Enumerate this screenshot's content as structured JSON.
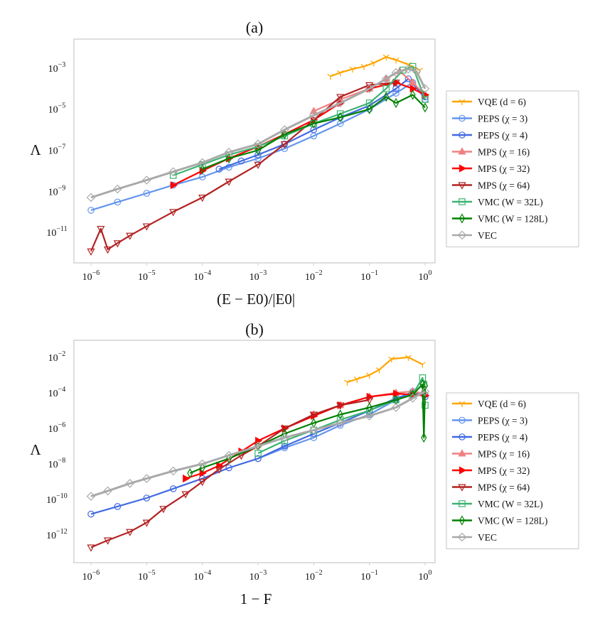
{
  "legend_entries": [
    {
      "key": "vqe",
      "label": "VQE (d = 6)",
      "color": "#FFA500",
      "marker": "tri_down"
    },
    {
      "key": "peps3",
      "label": "PEPS (χ = 3)",
      "color": "#6495ED",
      "marker": "circle"
    },
    {
      "key": "peps4",
      "label": "PEPS (χ = 4)",
      "color": "#4169E1",
      "marker": "circle"
    },
    {
      "key": "mps16",
      "label": "MPS (χ = 16)",
      "color": "#F08080",
      "marker": "triangle_up"
    },
    {
      "key": "mps32",
      "label": "MPS (χ = 32)",
      "color": "#FF0000",
      "marker": "triangle_right"
    },
    {
      "key": "mps64",
      "label": "MPS (χ = 64)",
      "color": "#B22222",
      "marker": "triangle_down"
    },
    {
      "key": "vmc32",
      "label": "VMC (W = 32L)",
      "color": "#3CB371",
      "marker": "square"
    },
    {
      "key": "vmc128",
      "label": "VMC (W = 128L)",
      "color": "#008000",
      "marker": "diamond_thin"
    },
    {
      "key": "vec",
      "label": "VEC",
      "color": "#A9A9A9",
      "marker": "diamond"
    }
  ],
  "chart_data": [
    {
      "type": "line",
      "title": "(a)",
      "xlabel": "(E − E0)/|E0|",
      "ylabel": "Λ",
      "xscale": "log",
      "yscale": "log",
      "xlim": [
        1e-06,
        1
      ],
      "ylim": [
        1e-12,
        0.01
      ],
      "x_ticks": [
        "10^-6",
        "10^-5",
        "10^-4",
        "10^-3",
        "10^-2",
        "10^-1",
        "10^0"
      ],
      "y_ticks": [
        "10^-11",
        "10^-9",
        "10^-7",
        "10^-5",
        "10^-3"
      ],
      "grid": false,
      "legend_position": "right",
      "series": [
        {
          "name": "VQE (d = 6)",
          "key": "vqe",
          "x": [
            0.02,
            0.03,
            0.05,
            0.08,
            0.12,
            0.2,
            0.3,
            0.5,
            0.8
          ],
          "y": [
            0.0004,
            0.0006,
            0.0009,
            0.0012,
            0.0018,
            0.0035,
            0.0025,
            0.0015,
            0.0008
          ]
        },
        {
          "name": "PEPS (χ = 3)",
          "key": "peps3",
          "x": [
            1e-06,
            3e-06,
            1e-05,
            3e-05,
            0.0001,
            0.0003,
            0.001,
            0.003,
            0.01,
            0.03,
            0.1,
            0.3,
            0.6,
            1.0
          ],
          "y": [
            1.2e-10,
            3e-10,
            8e-10,
            2e-09,
            5e-09,
            1.5e-08,
            4e-08,
            1.2e-07,
            5e-07,
            2e-06,
            1e-05,
            6e-05,
            0.0002,
            3e-05
          ]
        },
        {
          "name": "PEPS (χ = 4)",
          "key": "peps4",
          "x": [
            0.0002,
            0.0005,
            0.001,
            0.003,
            0.01,
            0.03,
            0.1,
            0.3,
            0.5,
            1.0
          ],
          "y": [
            1.2e-08,
            3e-08,
            6e-08,
            2e-07,
            1e-06,
            4e-06,
            1.5e-05,
            0.0001,
            0.0003,
            4e-05
          ]
        },
        {
          "name": "MPS (χ = 16)",
          "key": "mps16",
          "x": [
            0.01,
            0.03,
            0.1,
            0.2,
            0.35,
            0.6,
            1.0
          ],
          "y": [
            8e-06,
            3e-05,
            0.0001,
            0.0003,
            0.0007,
            0.0002,
            5e-05
          ]
        },
        {
          "name": "MPS (χ = 32)",
          "key": "mps32",
          "x": [
            3e-05,
            0.0001,
            0.0003,
            0.001,
            0.003,
            0.01,
            0.03,
            0.1,
            0.3,
            0.6,
            1.0
          ],
          "y": [
            2e-09,
            1e-08,
            4e-08,
            1.5e-07,
            6e-07,
            3e-06,
            2e-05,
            0.0001,
            0.0002,
            0.0001,
            5e-05
          ]
        },
        {
          "name": "MPS (χ = 64)",
          "key": "mps64",
          "x": [
            1e-06,
            1.5e-06,
            2e-06,
            3e-06,
            5e-06,
            1e-05,
            3e-05,
            0.0001,
            0.0003,
            0.001,
            0.003,
            0.01,
            0.03,
            0.1,
            0.3
          ],
          "y": [
            1.2e-12,
            1.5e-11,
            1.5e-12,
            3e-12,
            7e-12,
            2e-11,
            1e-10,
            5e-10,
            3e-09,
            2e-08,
            2e-07,
            3e-06,
            4e-05,
            0.00015,
            0.0002
          ]
        },
        {
          "name": "VMC (W = 32L)",
          "key": "vmc32",
          "x": [
            3e-05,
            0.0001,
            0.0003,
            0.001,
            0.003,
            0.01,
            0.03,
            0.1,
            0.2,
            0.4,
            0.6,
            1.0
          ],
          "y": [
            6e-09,
            2e-08,
            6e-08,
            1.5e-07,
            5e-07,
            2e-06,
            6e-06,
            2e-05,
            0.0001,
            0.0008,
            0.0012,
            3e-05
          ]
        },
        {
          "name": "VMC (W = 128L)",
          "key": "vmc128",
          "x": [
            0.0001,
            0.0003,
            0.001,
            0.003,
            0.01,
            0.03,
            0.1,
            0.2,
            0.3,
            0.6,
            1.0
          ],
          "y": [
            1.2e-08,
            4e-08,
            1e-07,
            6e-07,
            2e-06,
            4e-06,
            1e-05,
            4e-05,
            2e-05,
            5e-05,
            1.2e-05
          ]
        },
        {
          "name": "VEC",
          "key": "vec",
          "x": [
            1e-06,
            3e-06,
            1e-05,
            3e-05,
            0.0001,
            0.0003,
            0.001,
            0.003,
            0.01,
            0.03,
            0.1,
            0.2,
            0.3,
            0.5,
            0.7,
            1.0
          ],
          "y": [
            5e-10,
            1.3e-09,
            3.5e-09,
            9e-09,
            2.5e-08,
            8e-08,
            2e-07,
            1e-06,
            5e-06,
            2e-05,
            0.0001,
            0.0003,
            0.0006,
            0.0009,
            0.0007,
            0.0001
          ]
        }
      ]
    },
    {
      "type": "line",
      "title": "(b)",
      "xlabel": "1 − F",
      "ylabel": "Λ",
      "xscale": "log",
      "yscale": "log",
      "xlim": [
        1e-06,
        1
      ],
      "ylim": [
        1e-13,
        0.03
      ],
      "x_ticks": [
        "10^-6",
        "10^-5",
        "10^-4",
        "10^-3",
        "10^-2",
        "10^-1",
        "10^0"
      ],
      "y_ticks": [
        "10^-12",
        "10^-10",
        "10^-8",
        "10^-6",
        "10^-4",
        "10^-2"
      ],
      "grid": false,
      "legend_position": "right",
      "series": [
        {
          "name": "VQE (d = 6)",
          "key": "vqe",
          "x": [
            0.04,
            0.06,
            0.1,
            0.15,
            0.25,
            0.5,
            0.9
          ],
          "y": [
            0.0004,
            0.0006,
            0.001,
            0.002,
            0.008,
            0.01,
            0.004
          ]
        },
        {
          "name": "PEPS (χ = 3)",
          "key": "peps3",
          "x": [
            0.001,
            0.003,
            0.01,
            0.03,
            0.1,
            0.3,
            0.6,
            1.0
          ],
          "y": [
            2e-08,
            8e-08,
            3e-07,
            1.5e-06,
            6e-06,
            4e-05,
            0.00012,
            8e-05
          ]
        },
        {
          "name": "PEPS (χ = 4)",
          "key": "peps4",
          "x": [
            1e-06,
            3e-06,
            1e-05,
            3e-05,
            0.0001,
            0.0003,
            0.001,
            0.003,
            0.01,
            0.03,
            0.1,
            0.3,
            0.6,
            1.0
          ],
          "y": [
            1.5e-11,
            4e-11,
            1.2e-10,
            4e-10,
            1.5e-09,
            6e-09,
            2e-08,
            1e-07,
            5e-07,
            2e-06,
            1e-05,
            5e-05,
            0.0001,
            6e-05
          ]
        },
        {
          "name": "MPS (χ = 16)",
          "key": "mps16",
          "x": [
            0.01,
            0.03,
            0.1,
            0.3,
            0.6,
            1.0
          ],
          "y": [
            6e-06,
            2e-05,
            6e-05,
            0.0001,
            0.00012,
            9e-05
          ]
        },
        {
          "name": "MPS (χ = 32)",
          "key": "mps32",
          "x": [
            5e-05,
            0.0001,
            0.0002,
            0.0005,
            0.001,
            0.003,
            0.01,
            0.03,
            0.1,
            0.3,
            0.6,
            1.0
          ],
          "y": [
            1.5e-09,
            3e-09,
            8e-09,
            5e-08,
            2e-07,
            1e-06,
            5e-06,
            2e-05,
            6e-05,
            9e-05,
            8e-05,
            7e-05
          ]
        },
        {
          "name": "MPS (χ = 64)",
          "key": "mps64",
          "x": [
            1e-06,
            2e-06,
            5e-06,
            1e-05,
            2e-05,
            5e-05,
            0.0001,
            0.0002,
            0.0005,
            0.001,
            0.003,
            0.01,
            0.03,
            0.1
          ],
          "y": [
            2e-13,
            5e-13,
            1.5e-12,
            5e-12,
            3e-11,
            2e-10,
            1e-09,
            5e-09,
            3e-08,
            1e-07,
            1e-06,
            6e-06,
            2e-05,
            4e-05
          ]
        },
        {
          "name": "VMC (W = 32L)",
          "key": "vmc32",
          "x": [
            0.001,
            0.003,
            0.01,
            0.03,
            0.1,
            0.3,
            0.6,
            0.9,
            0.95,
            1.0
          ],
          "y": [
            4e-08,
            2e-07,
            8e-07,
            3e-06,
            1e-05,
            4e-05,
            8e-05,
            0.0007,
            0.0003,
            2e-05
          ]
        },
        {
          "name": "VMC (W = 128L)",
          "key": "vmc128",
          "x": [
            6e-05,
            0.0001,
            0.0003,
            0.001,
            0.003,
            0.01,
            0.03,
            0.1,
            0.3,
            0.6,
            0.9,
            0.95,
            1.0
          ],
          "y": [
            3e-09,
            6e-09,
            2e-08,
            1e-07,
            5e-07,
            2e-06,
            6e-06,
            1.5e-05,
            4e-05,
            8e-05,
            0.0003,
            3e-07,
            0.00025
          ]
        },
        {
          "name": "VEC",
          "key": "vec",
          "x": [
            1e-06,
            2e-06,
            5e-06,
            1e-05,
            3e-05,
            0.0001,
            0.0003,
            0.001,
            0.003,
            0.01,
            0.03,
            0.1,
            0.3,
            0.6,
            1.0
          ],
          "y": [
            1.5e-10,
            3e-10,
            8e-10,
            1.5e-09,
            4e-09,
            1e-08,
            3e-08,
            1e-07,
            3e-07,
            8e-07,
            2e-06,
            5e-06,
            1.5e-05,
            5e-05,
            0.00012
          ]
        }
      ]
    }
  ]
}
